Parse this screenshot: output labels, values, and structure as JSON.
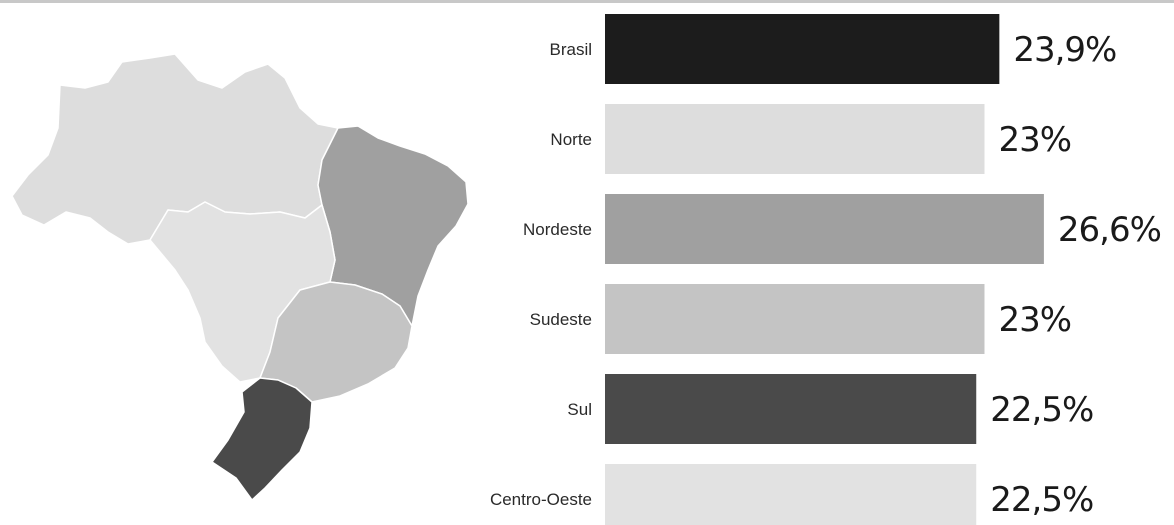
{
  "colors": {
    "Brasil": "#1c1c1c",
    "Norte": "#dddddd",
    "Nordeste": "#a0a0a0",
    "Sudeste": "#c4c4c4",
    "Sul": "#4a4a4a",
    "Centro-Oeste": "#e2e2e2"
  },
  "chart_data": {
    "type": "bar",
    "orientation": "horizontal",
    "categories": [
      "Brasil",
      "Norte",
      "Nordeste",
      "Sudeste",
      "Sul",
      "Centro-Oeste"
    ],
    "values": [
      23.9,
      23,
      26.6,
      23,
      22.5,
      22.5
    ],
    "value_labels": [
      "23,9%",
      "23%",
      "26,6%",
      "23%",
      "22,5%",
      "22,5%"
    ],
    "title": "",
    "xlabel": "",
    "ylabel": "",
    "grid": false,
    "legend": "none"
  },
  "map": {
    "regions": [
      "Norte",
      "Nordeste",
      "Centro-Oeste",
      "Sudeste",
      "Sul"
    ]
  }
}
